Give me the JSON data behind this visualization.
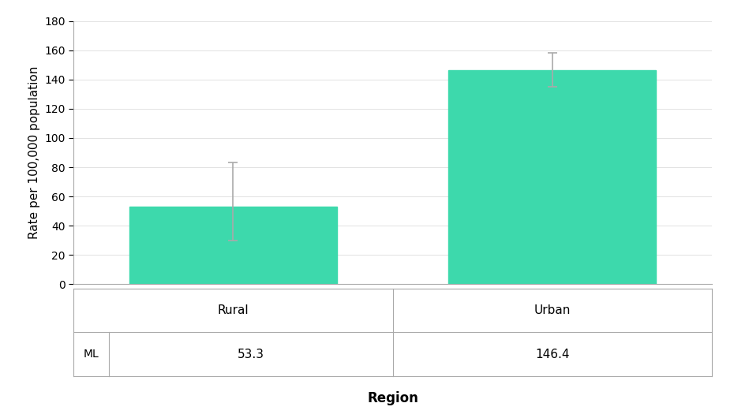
{
  "categories": [
    "Rural",
    "Urban"
  ],
  "values": [
    53.3,
    146.4
  ],
  "bar_color": "#3DD9AC",
  "error_upper": [
    29.7,
    11.6
  ],
  "error_lower": [
    23.3,
    11.4
  ],
  "ylim": [
    0,
    180
  ],
  "yticks": [
    0,
    20,
    40,
    60,
    80,
    100,
    120,
    140,
    160,
    180
  ],
  "ylabel": "Rate per 100,000 population",
  "xlabel": "Region",
  "table_row_label": "ML",
  "table_values": [
    "53.3",
    "146.4"
  ],
  "bar_width": 0.65,
  "capsize": 4,
  "error_color": "#aaaaaa",
  "background_color": "#ffffff",
  "grid_color": "#dddddd",
  "spine_color": "#aaaaaa"
}
